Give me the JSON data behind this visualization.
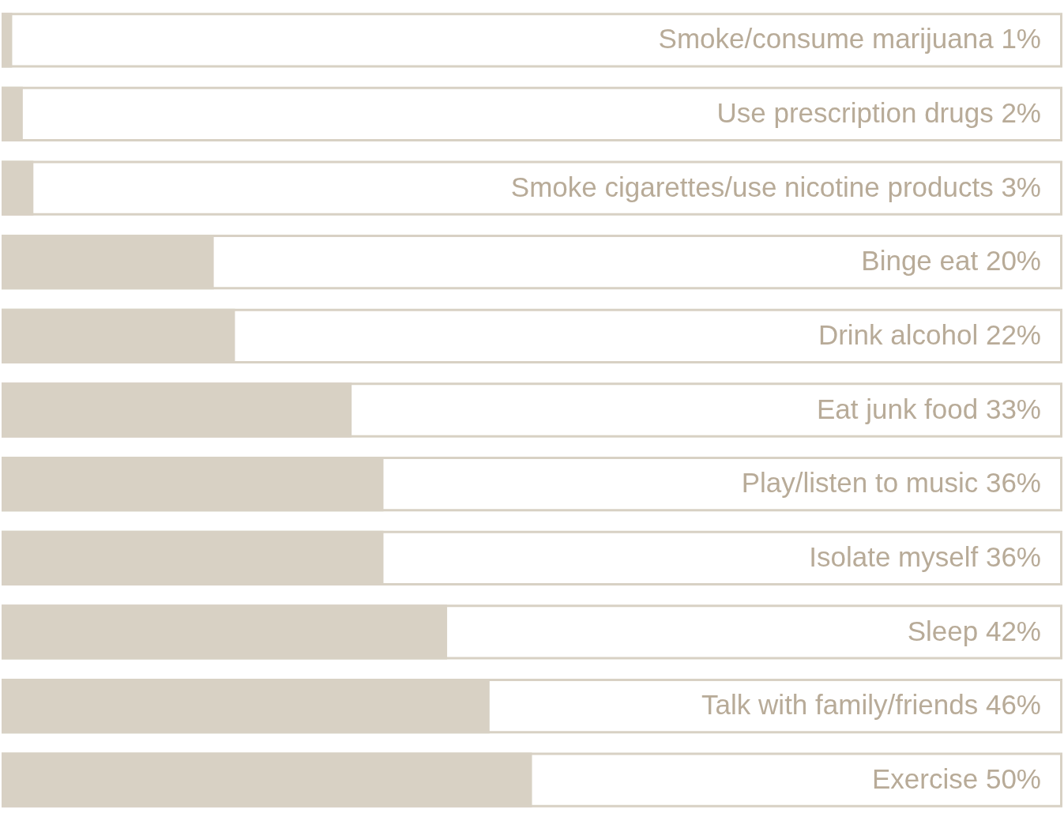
{
  "chart_data": {
    "type": "bar",
    "orientation": "horizontal",
    "categories": [
      "Smoke/consume marijuana",
      "Use prescription drugs",
      "Smoke cigarettes/use nicotine products",
      "Binge eat",
      "Drink alcohol",
      "Eat junk food",
      "Play/listen to music",
      "Isolate myself",
      "Sleep",
      "Talk with family/friends",
      "Exercise"
    ],
    "values": [
      1,
      2,
      3,
      20,
      22,
      33,
      36,
      36,
      42,
      46,
      50
    ],
    "value_labels": [
      "1%",
      "2%",
      "3%",
      "20%",
      "22%",
      "33%",
      "36%",
      "36%",
      "42%",
      "46%",
      "50%"
    ],
    "color": "#d8d1c4",
    "xlim": [
      0,
      100
    ],
    "tick_labels": false,
    "legend": false
  }
}
